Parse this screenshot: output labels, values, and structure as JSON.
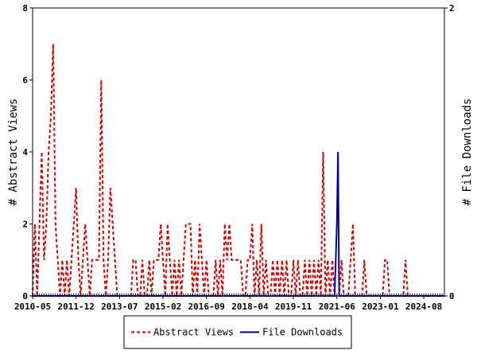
{
  "chart_data": {
    "type": "line",
    "title": "",
    "x_tick_labels": [
      "2010-05",
      "2011-12",
      "2013-07",
      "2015-02",
      "2016-09",
      "2018-04",
      "2019-11",
      "2021-06",
      "2023-01",
      "2024-08"
    ],
    "left_axis": {
      "label": "# Abstract Views",
      "ylim": [
        0,
        8
      ],
      "ticks": [
        "0",
        "2",
        "4",
        "6",
        "8"
      ]
    },
    "right_axis": {
      "label": "# File Downloads",
      "ylim": [
        0,
        2
      ],
      "ticks": [
        "0",
        "2"
      ]
    },
    "x_unit": "month index from 2010-05",
    "xlim": [
      0,
      180
    ],
    "grid": false,
    "legend_position": "bottom-center",
    "series": [
      {
        "name": "Abstract Views",
        "axis": "left",
        "color": "#cc0000",
        "style": "dashed",
        "points": [
          [
            0,
            0
          ],
          [
            1,
            2
          ],
          [
            2,
            0
          ],
          [
            3,
            2
          ],
          [
            4,
            4
          ],
          [
            5,
            1
          ],
          [
            6,
            2
          ],
          [
            7,
            4
          ],
          [
            8,
            5
          ],
          [
            9,
            7
          ],
          [
            10,
            2
          ],
          [
            11,
            1
          ],
          [
            12,
            0
          ],
          [
            13,
            1
          ],
          [
            14,
            0
          ],
          [
            15,
            1
          ],
          [
            16,
            0
          ],
          [
            17,
            1
          ],
          [
            18,
            2
          ],
          [
            19,
            3
          ],
          [
            20,
            1
          ],
          [
            21,
            0
          ],
          [
            22,
            1
          ],
          [
            23,
            2
          ],
          [
            24,
            1
          ],
          [
            25,
            0
          ],
          [
            26,
            1
          ],
          [
            27,
            1
          ],
          [
            28,
            1
          ],
          [
            29,
            1
          ],
          [
            30,
            6
          ],
          [
            31,
            1
          ],
          [
            32,
            0
          ],
          [
            33,
            1
          ],
          [
            34,
            3
          ],
          [
            35,
            2
          ],
          [
            36,
            1
          ],
          [
            37,
            0
          ],
          [
            38,
            0
          ],
          [
            39,
            0
          ],
          [
            40,
            0
          ],
          [
            41,
            0
          ],
          [
            42,
            0
          ],
          [
            43,
            0
          ],
          [
            44,
            1
          ],
          [
            45,
            1
          ],
          [
            46,
            0
          ],
          [
            47,
            0
          ],
          [
            48,
            1
          ],
          [
            49,
            0
          ],
          [
            50,
            0
          ],
          [
            51,
            1
          ],
          [
            52,
            0
          ],
          [
            53,
            1
          ],
          [
            54,
            1
          ],
          [
            55,
            1
          ],
          [
            56,
            2
          ],
          [
            57,
            1
          ],
          [
            58,
            0
          ],
          [
            59,
            2
          ],
          [
            60,
            1
          ],
          [
            61,
            0
          ],
          [
            62,
            1
          ],
          [
            63,
            0
          ],
          [
            64,
            1
          ],
          [
            65,
            0
          ],
          [
            66,
            1
          ],
          [
            67,
            2
          ],
          [
            68,
            2
          ],
          [
            69,
            2
          ],
          [
            70,
            0
          ],
          [
            71,
            1
          ],
          [
            72,
            0
          ],
          [
            73,
            2
          ],
          [
            74,
            1
          ],
          [
            75,
            0
          ],
          [
            76,
            1
          ],
          [
            77,
            0
          ],
          [
            78,
            0
          ],
          [
            79,
            0
          ],
          [
            80,
            1
          ],
          [
            81,
            0
          ],
          [
            82,
            1
          ],
          [
            83,
            0
          ],
          [
            84,
            2
          ],
          [
            85,
            1
          ],
          [
            86,
            2
          ],
          [
            87,
            1
          ],
          [
            88,
            1
          ],
          [
            89,
            1
          ],
          [
            90,
            1
          ],
          [
            91,
            1
          ],
          [
            92,
            0
          ],
          [
            93,
            0
          ],
          [
            94,
            1
          ],
          [
            95,
            1
          ],
          [
            96,
            2
          ],
          [
            97,
            0
          ],
          [
            98,
            1
          ],
          [
            99,
            0
          ],
          [
            100,
            2
          ],
          [
            101,
            0
          ],
          [
            102,
            1
          ],
          [
            103,
            0
          ],
          [
            104,
            0
          ],
          [
            105,
            1
          ],
          [
            106,
            0
          ],
          [
            107,
            1
          ],
          [
            108,
            0
          ],
          [
            109,
            1
          ],
          [
            110,
            0
          ],
          [
            111,
            1
          ],
          [
            112,
            0
          ],
          [
            113,
            0
          ],
          [
            114,
            1
          ],
          [
            115,
            0
          ],
          [
            116,
            1
          ],
          [
            117,
            0
          ],
          [
            118,
            0
          ],
          [
            119,
            1
          ],
          [
            120,
            0
          ],
          [
            121,
            1
          ],
          [
            122,
            0
          ],
          [
            123,
            1
          ],
          [
            124,
            0
          ],
          [
            125,
            1
          ],
          [
            126,
            0
          ],
          [
            127,
            4
          ],
          [
            128,
            0
          ],
          [
            129,
            1
          ],
          [
            130,
            0
          ],
          [
            131,
            1
          ],
          [
            132,
            0
          ],
          [
            133,
            0
          ],
          [
            134,
            0
          ],
          [
            135,
            1
          ],
          [
            136,
            0
          ],
          [
            137,
            0
          ],
          [
            138,
            0
          ],
          [
            139,
            1
          ],
          [
            140,
            2
          ],
          [
            141,
            0
          ],
          [
            142,
            0
          ],
          [
            143,
            0
          ],
          [
            144,
            0
          ],
          [
            145,
            1
          ],
          [
            146,
            0
          ],
          [
            147,
            0
          ],
          [
            148,
            0
          ],
          [
            149,
            0
          ],
          [
            150,
            0
          ],
          [
            151,
            0
          ],
          [
            152,
            0
          ],
          [
            153,
            0
          ],
          [
            154,
            1
          ],
          [
            155,
            1
          ],
          [
            156,
            0
          ],
          [
            157,
            0
          ],
          [
            158,
            0
          ],
          [
            159,
            0
          ],
          [
            160,
            0
          ],
          [
            161,
            0
          ],
          [
            162,
            0
          ],
          [
            163,
            1
          ],
          [
            164,
            0
          ],
          [
            165,
            0
          ],
          [
            166,
            0
          ],
          [
            167,
            0
          ],
          [
            168,
            0
          ],
          [
            169,
            0
          ],
          [
            170,
            0
          ],
          [
            171,
            0
          ],
          [
            172,
            0
          ],
          [
            173,
            0
          ],
          [
            174,
            0
          ],
          [
            175,
            0
          ],
          [
            176,
            0
          ],
          [
            177,
            0
          ],
          [
            178,
            0
          ],
          [
            179,
            0
          ]
        ]
      },
      {
        "name": "File Downloads",
        "axis": "right",
        "color": "#000099",
        "style": "solid",
        "points": [
          [
            0,
            0
          ],
          [
            132,
            0
          ],
          [
            133,
            0.5
          ],
          [
            133.5,
            1
          ],
          [
            134,
            0
          ],
          [
            180,
            0
          ]
        ]
      }
    ]
  }
}
